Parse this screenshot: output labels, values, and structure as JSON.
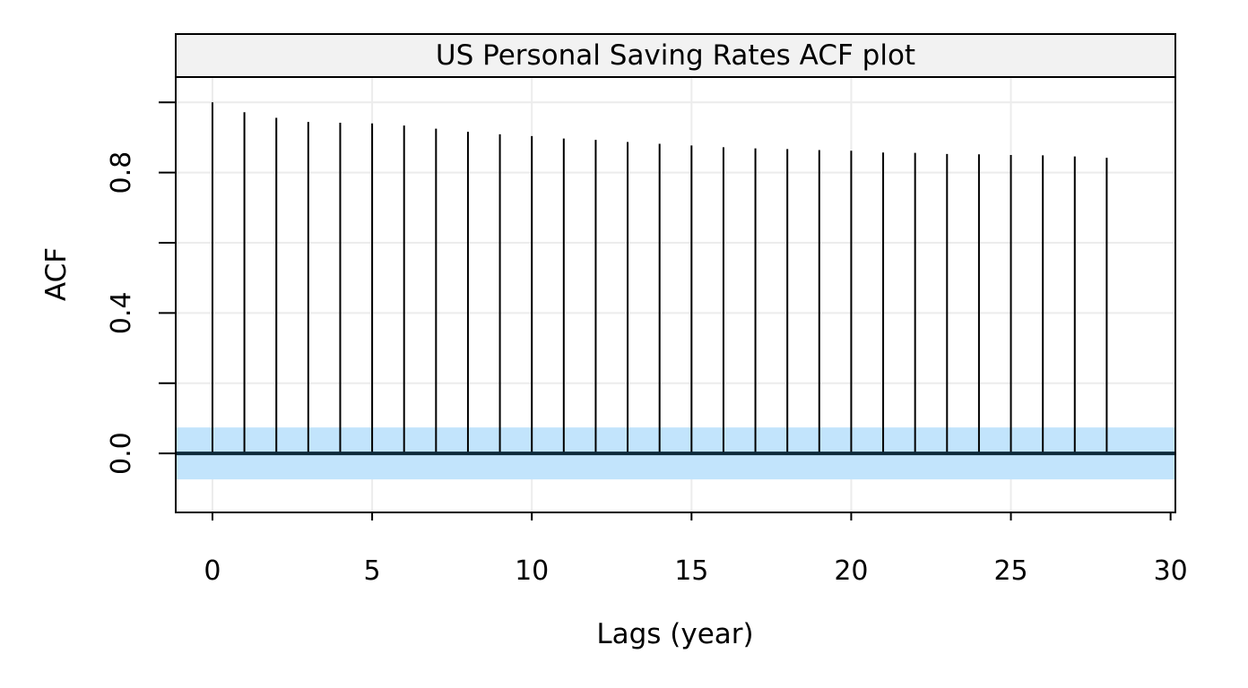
{
  "chart_data": {
    "type": "bar",
    "title": "US Personal Saving Rates ACF plot",
    "xlabel": "Lags (year)",
    "ylabel": "ACF",
    "xlim": [
      -1.15,
      30.15
    ],
    "ylim": [
      -0.168,
      1.072
    ],
    "x_ticks": [
      0,
      5,
      10,
      15,
      20,
      25,
      30
    ],
    "x_tick_labels": [
      "0",
      "5",
      "10",
      "15",
      "20",
      "25",
      "30"
    ],
    "y_ticks": [
      0.0,
      0.2,
      0.4,
      0.6,
      0.8,
      1.0
    ],
    "y_tick_labels": [
      "0.0",
      "",
      "0.4",
      "",
      "0.8",
      ""
    ],
    "grid": true,
    "lags": [
      0,
      1,
      2,
      3,
      4,
      5,
      6,
      7,
      8,
      9,
      10,
      11,
      12,
      13,
      14,
      15,
      16,
      17,
      18,
      19,
      20,
      21,
      22,
      23,
      24,
      25,
      26,
      27,
      28
    ],
    "acf": [
      1.0,
      0.972,
      0.956,
      0.944,
      0.942,
      0.94,
      0.934,
      0.925,
      0.916,
      0.909,
      0.904,
      0.897,
      0.893,
      0.887,
      0.882,
      0.877,
      0.872,
      0.869,
      0.867,
      0.864,
      0.862,
      0.857,
      0.856,
      0.853,
      0.852,
      0.85,
      0.849,
      0.846,
      0.842
    ],
    "confidence_band": [
      -0.074,
      0.074
    ],
    "colors": {
      "band": "#c2e4fc",
      "lines": "#000000",
      "zero_line": "#0d2a3a",
      "grid": "#ececec",
      "strip": "#f2f2f2"
    }
  }
}
